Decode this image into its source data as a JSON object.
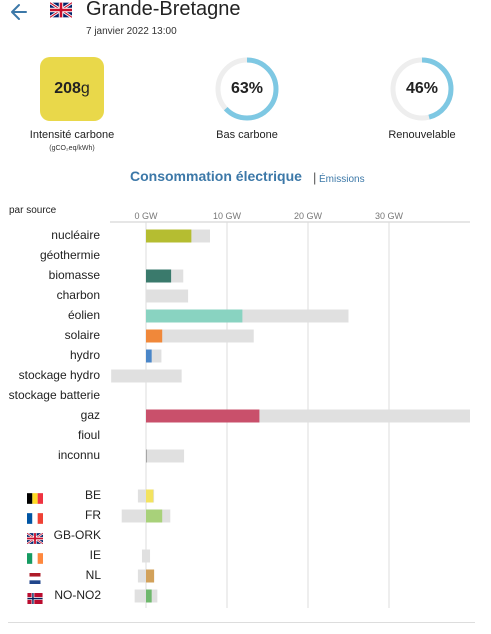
{
  "header": {
    "title": "Grande-Bretagne",
    "date": "7 janvier 2022 13:00",
    "back_icon": "arrow-left-icon",
    "flag_icon": "uk-flag-icon"
  },
  "metrics": {
    "carbon_value": "208",
    "carbon_unit": "g",
    "carbon_label": "Intensité carbone",
    "carbon_sub": "(gCO₂eq/kWh)",
    "carbon_color": "#e9d84a",
    "low_carbon_percent": "63%",
    "low_carbon_fraction": 0.63,
    "low_carbon_label": "Bas carbone",
    "renewable_percent": "46%",
    "renewable_fraction": 0.46,
    "renewable_label": "Renouvelable",
    "ring_color": "#7ec8e3"
  },
  "section": {
    "title": "Consommation électrique",
    "separator": "|",
    "link": "Émissions"
  },
  "chart_data": {
    "type": "bar",
    "subtitle": "par source",
    "x_ticks": [
      "0 GW",
      "10 GW",
      "20 GW",
      "30 GW"
    ],
    "x_tick_values": [
      0,
      10,
      20,
      30
    ],
    "xlim": [
      -4.3,
      40
    ],
    "sources": [
      {
        "label": "nucléaire",
        "value": 5.6,
        "capacity": 7.9,
        "color": "#b5bd31"
      },
      {
        "label": "géothermie",
        "value": 0,
        "capacity": 0,
        "color": "#b5bd31"
      },
      {
        "label": "biomasse",
        "value": 3.1,
        "capacity": 4.6,
        "color": "#3a7a6c"
      },
      {
        "label": "charbon",
        "value": 0,
        "capacity": 5.2,
        "color": "#555555"
      },
      {
        "label": "éolien",
        "value": 11.9,
        "capacity": 25.0,
        "color": "#89d3c1"
      },
      {
        "label": "solaire",
        "value": 2.0,
        "capacity": 13.3,
        "color": "#f0883a"
      },
      {
        "label": "hydro",
        "value": 0.7,
        "capacity": 1.9,
        "color": "#4a86c8"
      },
      {
        "label": "stockage hydro",
        "value": 0,
        "capacity": 4.4,
        "capacity_min": -4.3,
        "color": "#4a86c8"
      },
      {
        "label": "stockage batterie",
        "value": 0,
        "capacity": 0,
        "color": "#4a86c8"
      },
      {
        "label": "gaz",
        "value": 14.0,
        "capacity": 40.0,
        "color": "#c9506b"
      },
      {
        "label": "fioul",
        "value": 0,
        "capacity": 0,
        "color": "#865a4a"
      },
      {
        "label": "inconnu",
        "value": 0.1,
        "capacity": 4.7,
        "color": "#999999"
      }
    ],
    "exchanges": [
      {
        "label": "BE",
        "value": 0.9,
        "capacity": 1.0,
        "capacity_min": -1.0,
        "color": "#f3e35f",
        "flag": "belgium-flag-icon"
      },
      {
        "label": "FR",
        "value": 2.0,
        "capacity": 3.0,
        "capacity_min": -3.0,
        "color": "#a8d17a",
        "flag": "france-flag-icon"
      },
      {
        "label": "GB-ORK",
        "value": 0,
        "capacity": 0,
        "color": "#cccccc",
        "flag": "uk-flag-icon"
      },
      {
        "label": "IE",
        "value": 0,
        "capacity": 0.5,
        "capacity_min": -0.5,
        "color": "#cccccc",
        "flag": "ireland-flag-icon"
      },
      {
        "label": "NL",
        "value": 1.0,
        "capacity": 1.0,
        "capacity_min": -1.0,
        "color": "#d2a15a",
        "flag": "netherlands-flag-icon"
      },
      {
        "label": "NO-NO2",
        "value": 0.7,
        "capacity": 1.4,
        "capacity_min": -1.4,
        "color": "#6fb86d",
        "flag": "norway-flag-icon"
      }
    ],
    "grid": true
  }
}
